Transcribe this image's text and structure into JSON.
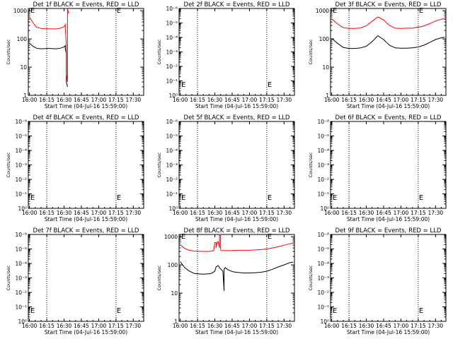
{
  "chart_data": [
    {
      "type": "line",
      "title": "Det 1f BLACK = Events, RED = LLD",
      "xlabel": "Start Time (04-Jul-16 15:59:00)",
      "ylabel": "Counts/sec",
      "x_ticks": [
        "16:00",
        "16:15",
        "16:30",
        "16:45",
        "17:00",
        "17:15",
        "17:30"
      ],
      "y_scale": "log",
      "y_ticks": [
        "1",
        "10",
        "100",
        "1000"
      ],
      "ylim": [
        1,
        1200
      ],
      "marker_text": "E",
      "dotted_lines_x": [
        "16:15",
        "17:15"
      ],
      "series": [
        {
          "color": "#000000",
          "x": [
            "16:00",
            "16:03",
            "16:06",
            "16:09",
            "16:12",
            "16:15",
            "16:18",
            "16:21",
            "16:24",
            "16:27",
            "16:30",
            "16:31",
            "16:31",
            "16:32",
            "16:32",
            "16:33"
          ],
          "y": [
            70,
            55,
            47,
            45,
            45,
            46,
            46,
            45,
            45,
            47,
            52,
            58,
            45,
            30,
            3,
            2
          ]
        },
        {
          "color": "#ff0000",
          "x": [
            "16:00",
            "16:03",
            "16:06",
            "16:09",
            "16:12",
            "16:15",
            "16:18",
            "16:21",
            "16:24",
            "16:27",
            "16:30",
            "16:31",
            "16:31",
            "16:32",
            "16:32",
            "16:33",
            "16:33",
            "16:34"
          ],
          "y": [
            600,
            380,
            260,
            240,
            230,
            230,
            230,
            225,
            230,
            240,
            270,
            320,
            250,
            60,
            6,
            3,
            1200,
            800
          ]
        }
      ]
    },
    {
      "type": "line",
      "title": "Det 2f BLACK = Events, RED = LLD",
      "xlabel": "Start Time (04-Jul-16 15:59:00)",
      "ylabel": "Counts/sec",
      "x_ticks": [
        "16:00",
        "16:15",
        "16:30",
        "16:45",
        "17:00",
        "17:15",
        "17:30"
      ],
      "y_scale": "log",
      "y_ticks": [
        "10⁰",
        "10⁻¹",
        "10⁻²",
        "10⁻³",
        "10⁻⁴",
        "10⁻⁵",
        "10⁻⁶"
      ],
      "marker_text": "E",
      "dotted_lines_x": [
        "16:15",
        "17:15"
      ],
      "series": []
    },
    {
      "type": "line",
      "title": "Det 3f BLACK = Events, RED = LLD",
      "xlabel": "Start Time (04-Jul-16 15:59:00)",
      "ylabel": "Counts/sec",
      "x_ticks": [
        "16:00",
        "16:15",
        "16:30",
        "16:45",
        "17:00",
        "17:15",
        "17:30"
      ],
      "y_scale": "log",
      "y_ticks": [
        "1",
        "10",
        "100",
        "1000"
      ],
      "ylim": [
        1,
        1200
      ],
      "marker_text": "E",
      "dotted_lines_x": [
        "16:15",
        "17:15"
      ],
      "series": [
        {
          "color": "#000000",
          "x": [
            "16:00",
            "16:05",
            "16:10",
            "16:15",
            "16:20",
            "16:25",
            "16:30",
            "16:35",
            "16:40",
            "16:45",
            "16:50",
            "16:55",
            "17:00",
            "17:05",
            "17:10",
            "17:15",
            "17:20",
            "17:25",
            "17:30",
            "17:35",
            "17:38"
          ],
          "y": [
            105,
            70,
            50,
            46,
            46,
            48,
            55,
            80,
            130,
            95,
            60,
            48,
            47,
            47,
            48,
            52,
            60,
            75,
            95,
            110,
            115
          ]
        },
        {
          "color": "#ff0000",
          "x": [
            "16:00",
            "16:05",
            "16:10",
            "16:15",
            "16:20",
            "16:25",
            "16:30",
            "16:35",
            "16:40",
            "16:45",
            "16:50",
            "16:55",
            "17:00",
            "17:05",
            "17:10",
            "17:15",
            "17:20",
            "17:25",
            "17:30",
            "17:35",
            "17:38"
          ],
          "y": [
            520,
            340,
            250,
            235,
            235,
            245,
            290,
            420,
            600,
            470,
            300,
            240,
            235,
            240,
            240,
            260,
            290,
            350,
            430,
            500,
            520
          ]
        }
      ]
    },
    {
      "type": "line",
      "title": "Det 4f BLACK = Events, RED = LLD",
      "xlabel": "Start Time (04-Jul-16 15:59:00)",
      "ylabel": "Counts/sec",
      "x_ticks": [
        "16:00",
        "16:15",
        "16:30",
        "16:45",
        "17:00",
        "17:15",
        "17:30"
      ],
      "y_scale": "log",
      "y_ticks": [
        "10⁰",
        "10⁻¹",
        "10⁻²",
        "10⁻³",
        "10⁻⁴",
        "10⁻⁵",
        "10⁻⁶"
      ],
      "marker_text": "E",
      "dotted_lines_x": [
        "16:15",
        "17:15"
      ],
      "series": []
    },
    {
      "type": "line",
      "title": "Det 5f BLACK = Events, RED = LLD",
      "xlabel": "Start Time (04-Jul-16 15:59:00)",
      "ylabel": "Counts/sec",
      "x_ticks": [
        "16:00",
        "16:15",
        "16:30",
        "16:45",
        "17:00",
        "17:15",
        "17:30"
      ],
      "y_scale": "log",
      "y_ticks": [
        "10⁰",
        "10⁻¹",
        "10⁻²",
        "10⁻³",
        "10⁻⁴",
        "10⁻⁵",
        "10⁻⁶"
      ],
      "marker_text": "E",
      "dotted_lines_x": [
        "16:15",
        "17:15"
      ],
      "series": []
    },
    {
      "type": "line",
      "title": "Det 6f BLACK = Events, RED = LLD",
      "xlabel": "Start Time (04-Jul-16 15:59:00)",
      "ylabel": "Counts/sec",
      "x_ticks": [
        "16:00",
        "16:15",
        "16:30",
        "16:45",
        "17:00",
        "17:15",
        "17:30"
      ],
      "y_scale": "log",
      "y_ticks": [
        "10⁰",
        "10⁻¹",
        "10⁻²",
        "10⁻³",
        "10⁻⁴",
        "10⁻⁵",
        "10⁻⁶"
      ],
      "marker_text": "E",
      "dotted_lines_x": [
        "16:15",
        "17:15"
      ],
      "series": []
    },
    {
      "type": "line",
      "title": "Det 7f BLACK = Events, RED = LLD",
      "xlabel": "Start Time (04-Jul-16 15:59:00)",
      "ylabel": "Counts/sec",
      "x_ticks": [
        "16:00",
        "16:15",
        "16:30",
        "16:45",
        "17:00",
        "17:15",
        "17:30"
      ],
      "y_scale": "log",
      "y_ticks": [
        "10⁰",
        "10⁻¹",
        "10⁻²",
        "10⁻³",
        "10⁻⁴",
        "10⁻⁵",
        "10⁻⁶"
      ],
      "marker_text": "E",
      "dotted_lines_x": [
        "16:15",
        "17:15"
      ],
      "series": []
    },
    {
      "type": "line",
      "title": "Det 8f BLACK = Events, RED = LLD",
      "xlabel": "Start Time (04-Jul-16 15:59:00)",
      "ylabel": "Counts/sec",
      "x_ticks": [
        "16:00",
        "16:15",
        "16:30",
        "16:45",
        "17:00",
        "17:15",
        "17:30"
      ],
      "y_scale": "log",
      "y_ticks": [
        "1",
        "10",
        "100",
        "1000"
      ],
      "ylim": [
        1,
        1200
      ],
      "marker_text": "E",
      "dotted_lines_x": [
        "16:15",
        "17:15"
      ],
      "series": [
        {
          "color": "#000000",
          "x": [
            "16:00",
            "16:04",
            "16:08",
            "16:12",
            "16:16",
            "16:20",
            "16:24",
            "16:27",
            "16:30",
            "16:31",
            "16:32",
            "16:33",
            "16:34",
            "16:37",
            "16:38",
            "16:38",
            "16:39",
            "16:42",
            "16:46",
            "16:50",
            "16:55",
            "17:00",
            "17:05",
            "17:10",
            "17:15",
            "17:20",
            "17:25",
            "17:30",
            "17:35",
            "17:38"
          ],
          "y": [
            130,
            80,
            60,
            50,
            48,
            47,
            48,
            50,
            60,
            85,
            90,
            95,
            80,
            60,
            12,
            70,
            80,
            65,
            57,
            54,
            52,
            52,
            53,
            55,
            60,
            70,
            85,
            100,
            120,
            125
          ]
        },
        {
          "color": "#ff0000",
          "x": [
            "16:00",
            "16:04",
            "16:08",
            "16:12",
            "16:16",
            "16:20",
            "16:24",
            "16:27",
            "16:29",
            "16:30",
            "16:31",
            "16:31",
            "16:32",
            "16:33",
            "16:34",
            "16:34",
            "16:35",
            "16:35",
            "16:36",
            "16:40",
            "16:45",
            "16:50",
            "16:55",
            "17:00",
            "17:05",
            "17:10",
            "17:15",
            "17:20",
            "17:25",
            "17:30",
            "17:35",
            "17:38"
          ],
          "y": [
            520,
            380,
            330,
            310,
            305,
            300,
            300,
            310,
            320,
            620,
            620,
            400,
            650,
            650,
            400,
            1100,
            1100,
            340,
            320,
            320,
            325,
            330,
            330,
            330,
            340,
            350,
            370,
            400,
            440,
            500,
            560,
            600
          ]
        }
      ]
    },
    {
      "type": "line",
      "title": "Det 9f BLACK = Events, RED = LLD",
      "xlabel": "Start Time (04-Jul-16 15:59:00)",
      "ylabel": "Counts/sec",
      "x_ticks": [
        "16:00",
        "16:15",
        "16:30",
        "16:45",
        "17:00",
        "17:15",
        "17:30"
      ],
      "y_scale": "log",
      "y_ticks": [
        "10⁰",
        "10⁻¹",
        "10⁻²",
        "10⁻³",
        "10⁻⁴",
        "10⁻⁵",
        "10⁻⁶"
      ],
      "marker_text": "E",
      "dotted_lines_x": [
        "16:15",
        "17:15"
      ],
      "series": []
    }
  ]
}
